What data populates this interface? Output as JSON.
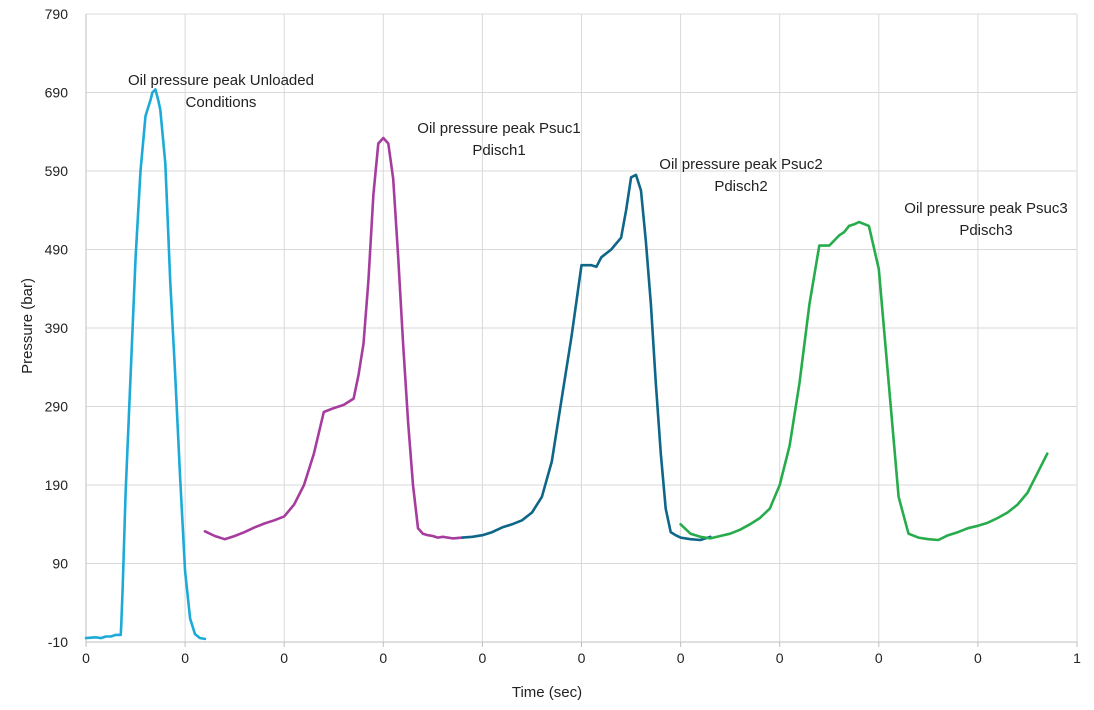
{
  "chart_data": {
    "type": "line",
    "title": "",
    "xlabel": "Time (sec)",
    "ylabel": "Pressure (bar)",
    "xlim": [
      0,
      1
    ],
    "ylim": [
      -10,
      790
    ],
    "y_ticks": [
      -10,
      90,
      190,
      290,
      390,
      490,
      590,
      690,
      790
    ],
    "x_tick_labels": [
      "0",
      "0",
      "0",
      "0",
      "0",
      "0",
      "0",
      "0",
      "0",
      "0",
      "1"
    ],
    "grid": true,
    "series": [
      {
        "name": "Unloaded Conditions",
        "color": "#1cabd8",
        "x": [
          0.0,
          0.01,
          0.015,
          0.02,
          0.025,
          0.03,
          0.035,
          0.0355,
          0.037,
          0.04,
          0.045,
          0.05,
          0.055,
          0.06,
          0.065,
          0.067,
          0.07,
          0.073,
          0.075,
          0.08,
          0.082,
          0.085,
          0.09,
          0.095,
          0.1,
          0.105,
          0.11,
          0.115,
          0.12
        ],
        "y": [
          -5,
          -4,
          -5,
          -3,
          -3,
          -1,
          -1,
          10,
          60,
          180,
          330,
          480,
          590,
          660,
          680,
          690,
          694,
          680,
          668,
          600,
          540,
          450,
          330,
          200,
          80,
          20,
          0,
          -5,
          -6
        ]
      },
      {
        "name": "Psuc1 Pdisch1",
        "color": "#a63d9e",
        "x": [
          0.12,
          0.13,
          0.14,
          0.15,
          0.16,
          0.17,
          0.18,
          0.19,
          0.2,
          0.21,
          0.22,
          0.23,
          0.24,
          0.25,
          0.26,
          0.27,
          0.275,
          0.28,
          0.285,
          0.29,
          0.295,
          0.3,
          0.305,
          0.31,
          0.315,
          0.32,
          0.325,
          0.33,
          0.335,
          0.34,
          0.345,
          0.35,
          0.355,
          0.36,
          0.37,
          0.38
        ],
        "y": [
          131,
          125,
          121,
          125,
          130,
          136,
          141,
          145,
          150,
          165,
          190,
          230,
          283,
          288,
          292,
          300,
          330,
          370,
          450,
          560,
          625,
          632,
          625,
          580,
          480,
          370,
          270,
          190,
          135,
          128,
          126,
          125,
          123,
          124,
          122,
          123
        ]
      },
      {
        "name": "Psuc2 Pdisch2",
        "color": "#0e6688",
        "x": [
          0.38,
          0.39,
          0.4,
          0.41,
          0.42,
          0.43,
          0.44,
          0.45,
          0.46,
          0.47,
          0.48,
          0.49,
          0.5,
          0.51,
          0.515,
          0.52,
          0.53,
          0.54,
          0.545,
          0.55,
          0.555,
          0.56,
          0.565,
          0.57,
          0.575,
          0.58,
          0.585,
          0.59,
          0.595,
          0.6,
          0.61,
          0.62,
          0.63
        ],
        "y": [
          123,
          124,
          126,
          130,
          136,
          140,
          145,
          155,
          175,
          220,
          300,
          380,
          470,
          470,
          468,
          480,
          490,
          505,
          540,
          582,
          585,
          565,
          500,
          420,
          320,
          230,
          160,
          130,
          126,
          123,
          121,
          120,
          124
        ]
      },
      {
        "name": "Psuc3 Pdisch3",
        "color": "#27ac4c",
        "x": [
          0.6,
          0.61,
          0.62,
          0.63,
          0.64,
          0.65,
          0.66,
          0.67,
          0.68,
          0.69,
          0.7,
          0.71,
          0.72,
          0.73,
          0.74,
          0.75,
          0.76,
          0.765,
          0.77,
          0.775,
          0.78,
          0.79,
          0.8,
          0.81,
          0.82,
          0.83,
          0.84,
          0.85,
          0.86,
          0.87,
          0.88,
          0.89,
          0.9,
          0.91,
          0.92,
          0.93,
          0.94,
          0.95,
          0.96,
          0.97
        ],
        "y": [
          140,
          128,
          124,
          122,
          125,
          128,
          133,
          140,
          148,
          160,
          190,
          240,
          320,
          420,
          495,
          495,
          508,
          512,
          520,
          522,
          525,
          520,
          465,
          320,
          175,
          128,
          123,
          121,
          120,
          126,
          130,
          135,
          138,
          142,
          148,
          155,
          165,
          180,
          205,
          230
        ]
      }
    ],
    "annotations": [
      {
        "line1": "Oil pressure peak Unloaded",
        "line2": "Conditions"
      },
      {
        "line1": "Oil pressure peak Psuc1",
        "line2": "Pdisch1"
      },
      {
        "line1": "Oil pressure peak Psuc2",
        "line2": "Pdisch2"
      },
      {
        "line1": "Oil pressure peak Psuc3",
        "line2": "Pdisch3"
      }
    ]
  }
}
